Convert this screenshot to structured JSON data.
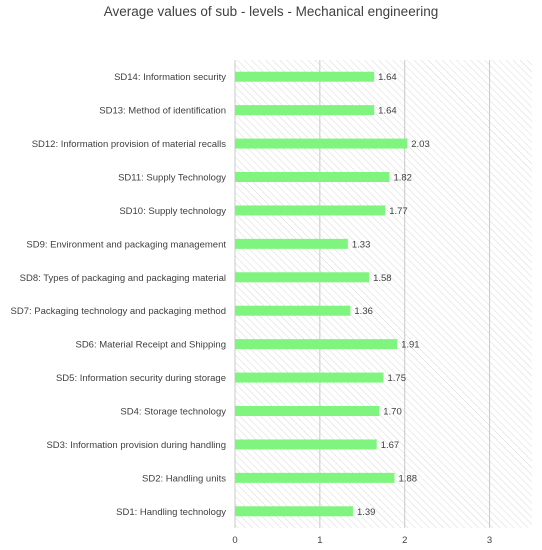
{
  "chart_data": {
    "type": "bar",
    "orientation": "horizontal",
    "title": "Average values of sub - levels - Mechanical engineering",
    "xlabel": "",
    "ylabel": "",
    "xlim": [
      0,
      3.5
    ],
    "x_ticks": [
      "0",
      "1",
      "2",
      "3"
    ],
    "grid": true,
    "legend": "none",
    "bar_color": "#7ff57f",
    "categories": [
      "SD14: Information security",
      "SD13: Method of identification",
      "SD12: Information provision of material recalls",
      "SD11: Supply Technology",
      "SD10: Supply technology",
      "SD9: Environment and packaging management",
      "SD8: Types of packaging and packaging material",
      "SD7: Packaging technology and packaging method",
      "SD6: Material Receipt and Shipping",
      "SD5: Information security during storage",
      "SD4: Storage technology",
      "SD3: Information provision during handling",
      "SD2: Handling units",
      "SD1: Handling technology"
    ],
    "values": [
      1.64,
      1.64,
      2.03,
      1.82,
      1.77,
      1.33,
      1.58,
      1.36,
      1.91,
      1.75,
      1.7,
      1.67,
      1.88,
      1.39
    ],
    "value_labels": [
      "1.64",
      "1.64",
      "2.03",
      "1.82",
      "1.77",
      "1.33",
      "1.58",
      "1.36",
      "1.91",
      "1.75",
      "1.70",
      "1.67",
      "1.88",
      "1.39"
    ]
  }
}
